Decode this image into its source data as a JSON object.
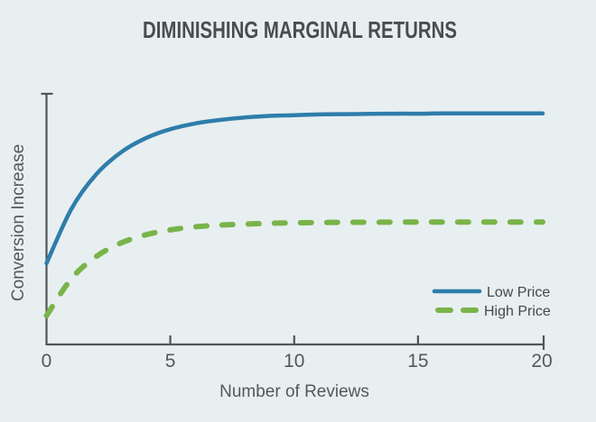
{
  "title": "DIMINISHING MARGINAL RETURNS",
  "colors": {
    "background": "#e8eff1",
    "axis": "#515558",
    "title_text": "#4a4c4d",
    "label_text": "#55585a",
    "low_price": "#2e7dab",
    "high_price": "#79b449"
  },
  "chart_data": {
    "type": "line",
    "title": "DIMINISHING MARGINAL RETURNS",
    "xlabel": "Number of Reviews",
    "ylabel": "Conversion Increase",
    "xlim": [
      0,
      20
    ],
    "ylim": [
      0,
      1
    ],
    "xticks": [
      0,
      5,
      10,
      15,
      20
    ],
    "yticks": [],
    "grid": false,
    "legend_position": "lower right",
    "x": [
      0,
      1,
      2,
      3,
      4,
      5,
      6,
      7,
      8,
      9,
      10,
      11,
      12,
      13,
      14,
      15,
      16,
      17,
      18,
      19,
      20
    ],
    "series": [
      {
        "name": "Low Price",
        "style": "solid",
        "color": "#2e7dab",
        "values": [
          0.325,
          0.542,
          0.681,
          0.769,
          0.826,
          0.862,
          0.885,
          0.899,
          0.909,
          0.915,
          0.918,
          0.921,
          0.922,
          0.923,
          0.924,
          0.924,
          0.925,
          0.925,
          0.925,
          0.925,
          0.925
        ]
      },
      {
        "name": "High Price",
        "style": "dashed",
        "color": "#79b449",
        "values": [
          0.115,
          0.263,
          0.352,
          0.406,
          0.439,
          0.459,
          0.471,
          0.478,
          0.482,
          0.485,
          0.487,
          0.488,
          0.489,
          0.489,
          0.49,
          0.49,
          0.49,
          0.49,
          0.49,
          0.49,
          0.49
        ]
      }
    ]
  },
  "legend": {
    "items": [
      {
        "label": "Low Price"
      },
      {
        "label": "High Price"
      }
    ]
  }
}
